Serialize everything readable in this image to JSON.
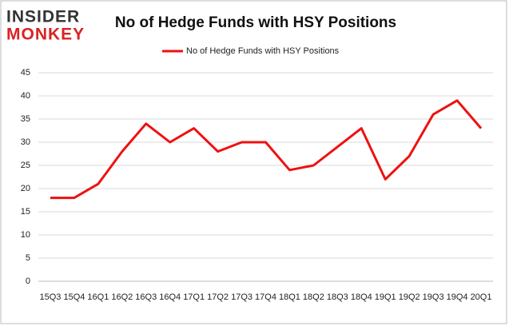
{
  "logo": {
    "top": "INSIDER",
    "bottom": "MONKEY"
  },
  "chart_data": {
    "type": "line",
    "title": "No of Hedge Funds with HSY Positions",
    "categories": [
      "15Q3",
      "15Q4",
      "16Q1",
      "16Q2",
      "16Q3",
      "16Q4",
      "17Q1",
      "17Q2",
      "17Q3",
      "17Q4",
      "18Q1",
      "18Q2",
      "18Q3",
      "18Q4",
      "19Q1",
      "19Q2",
      "19Q3",
      "19Q4",
      "20Q1"
    ],
    "series": [
      {
        "name": "No of Hedge Funds with HSY Positions",
        "color": "#ee1111",
        "values": [
          18,
          18,
          21,
          28,
          34,
          30,
          33,
          28,
          30,
          30,
          24,
          25,
          29,
          33,
          22,
          27,
          36,
          39,
          33
        ]
      }
    ],
    "ylim": [
      0,
      45
    ],
    "yticks": [
      0,
      5,
      10,
      15,
      20,
      25,
      30,
      35,
      40,
      45
    ],
    "grid": true,
    "legend": "top"
  }
}
